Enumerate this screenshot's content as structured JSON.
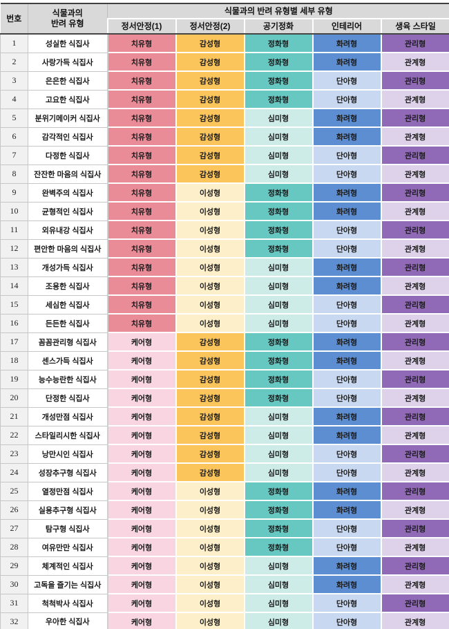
{
  "table": {
    "header": {
      "col_no": "번호",
      "col_type_line1": "식물과의",
      "col_type_line2": "반려 유형",
      "group_title": "식물과의 반려 유형별 세부 유형",
      "sub_columns": [
        "정서안정(1)",
        "정서안정(2)",
        "공기정화",
        "인테리어",
        "생육 스타일"
      ]
    },
    "cell_colors": {
      "치유형": "#ea8b98",
      "케어형": "#f8d5e0",
      "감성형": "#fbc55c",
      "이성형": "#fdefc9",
      "정화형": "#67c8c2",
      "심미형": "#cdece8",
      "화려형": "#5e8ed2",
      "단아형": "#c9d8f1",
      "관리형": "#9069b7",
      "관계형": "#ddd2ea"
    },
    "header_bg": "#d9d9d9",
    "rows": [
      {
        "no": "1",
        "name": "성실한 식집사",
        "values": [
          "치유형",
          "감성형",
          "정화형",
          "화려형",
          "관리형"
        ]
      },
      {
        "no": "2",
        "name": "사랑가득 식집사",
        "values": [
          "치유형",
          "감성형",
          "정화형",
          "화려형",
          "관계형"
        ]
      },
      {
        "no": "3",
        "name": "은은한 식집사",
        "values": [
          "치유형",
          "감성형",
          "정화형",
          "단아형",
          "관리형"
        ]
      },
      {
        "no": "4",
        "name": "고요한 식집사",
        "values": [
          "치유형",
          "감성형",
          "정화형",
          "단아형",
          "관계형"
        ]
      },
      {
        "no": "5",
        "name": "분위기메이커 식집사",
        "values": [
          "치유형",
          "감성형",
          "심미형",
          "화려형",
          "관리형"
        ]
      },
      {
        "no": "6",
        "name": "감각적인 식집사",
        "values": [
          "치유형",
          "감성형",
          "심미형",
          "화려형",
          "관계형"
        ]
      },
      {
        "no": "7",
        "name": "다정한 식집사",
        "values": [
          "치유형",
          "감성형",
          "심미형",
          "단아형",
          "관리형"
        ]
      },
      {
        "no": "8",
        "name": "잔잔한 마음의 식집사",
        "values": [
          "치유형",
          "감성형",
          "심미형",
          "단아형",
          "관계형"
        ]
      },
      {
        "no": "9",
        "name": "완벽주의 식집사",
        "values": [
          "치유형",
          "이성형",
          "정화형",
          "화려형",
          "관리형"
        ]
      },
      {
        "no": "10",
        "name": "균형적인 식집사",
        "values": [
          "치유형",
          "이성형",
          "정화형",
          "화려형",
          "관계형"
        ]
      },
      {
        "no": "11",
        "name": "외유내강 식집사",
        "values": [
          "치유형",
          "이성형",
          "정화형",
          "단아형",
          "관리형"
        ]
      },
      {
        "no": "12",
        "name": "편안한 마음의 식집사",
        "values": [
          "치유형",
          "이성형",
          "정화형",
          "단아형",
          "관계형"
        ]
      },
      {
        "no": "13",
        "name": "개성가득 식집사",
        "values": [
          "치유형",
          "이성형",
          "심미형",
          "화려형",
          "관리형"
        ]
      },
      {
        "no": "14",
        "name": "조용한 식집사",
        "values": [
          "치유형",
          "이성형",
          "심미형",
          "화려형",
          "관계형"
        ]
      },
      {
        "no": "15",
        "name": "세심한 식집사",
        "values": [
          "치유형",
          "이성형",
          "심미형",
          "단아형",
          "관리형"
        ]
      },
      {
        "no": "16",
        "name": "든든한 식집사",
        "values": [
          "치유형",
          "이성형",
          "심미형",
          "단아형",
          "관계형"
        ]
      },
      {
        "no": "17",
        "name": "꼼꼼관리형 식집사",
        "values": [
          "케어형",
          "감성형",
          "정화형",
          "화려형",
          "관리형"
        ]
      },
      {
        "no": "18",
        "name": "센스가득 식집사",
        "values": [
          "케어형",
          "감성형",
          "정화형",
          "화려형",
          "관계형"
        ]
      },
      {
        "no": "19",
        "name": "능수능란한 식집사",
        "values": [
          "케어형",
          "감성형",
          "정화형",
          "단아형",
          "관리형"
        ]
      },
      {
        "no": "20",
        "name": "단정한 식집사",
        "values": [
          "케어형",
          "감성형",
          "정화형",
          "단아형",
          "관계형"
        ]
      },
      {
        "no": "21",
        "name": "개성만점 식집사",
        "values": [
          "케어형",
          "감성형",
          "심미형",
          "화려형",
          "관리형"
        ]
      },
      {
        "no": "22",
        "name": "스타일리시한 식집사",
        "values": [
          "케어형",
          "감성형",
          "심미형",
          "화려형",
          "관계형"
        ]
      },
      {
        "no": "23",
        "name": "낭만시인 식집사",
        "values": [
          "케어형",
          "감성형",
          "심미형",
          "단아형",
          "관리형"
        ]
      },
      {
        "no": "24",
        "name": "성장추구형 식집사",
        "values": [
          "케어형",
          "감성형",
          "심미형",
          "단아형",
          "관계형"
        ]
      },
      {
        "no": "25",
        "name": "열정만점 식집사",
        "values": [
          "케어형",
          "이성형",
          "정화형",
          "화려형",
          "관리형"
        ]
      },
      {
        "no": "26",
        "name": "실용추구형 식집사",
        "values": [
          "케어형",
          "이성형",
          "정화형",
          "화려형",
          "관계형"
        ]
      },
      {
        "no": "27",
        "name": "탐구형 식집사",
        "values": [
          "케어형",
          "이성형",
          "정화형",
          "단아형",
          "관리형"
        ]
      },
      {
        "no": "28",
        "name": "여유만만 식집사",
        "values": [
          "케어형",
          "이성형",
          "정화형",
          "단아형",
          "관계형"
        ]
      },
      {
        "no": "29",
        "name": "체계적인 식집사",
        "values": [
          "케어형",
          "이성형",
          "심미형",
          "화려형",
          "관리형"
        ]
      },
      {
        "no": "30",
        "name": "고독을 즐기는 식집사",
        "values": [
          "케어형",
          "이성형",
          "심미형",
          "화려형",
          "관계형"
        ]
      },
      {
        "no": "31",
        "name": "척척박사 식집사",
        "values": [
          "케어형",
          "이성형",
          "심미형",
          "단아형",
          "관리형"
        ]
      },
      {
        "no": "32",
        "name": "우아한 식집사",
        "values": [
          "케어형",
          "이성형",
          "심미형",
          "단아형",
          "관계형"
        ]
      }
    ]
  }
}
